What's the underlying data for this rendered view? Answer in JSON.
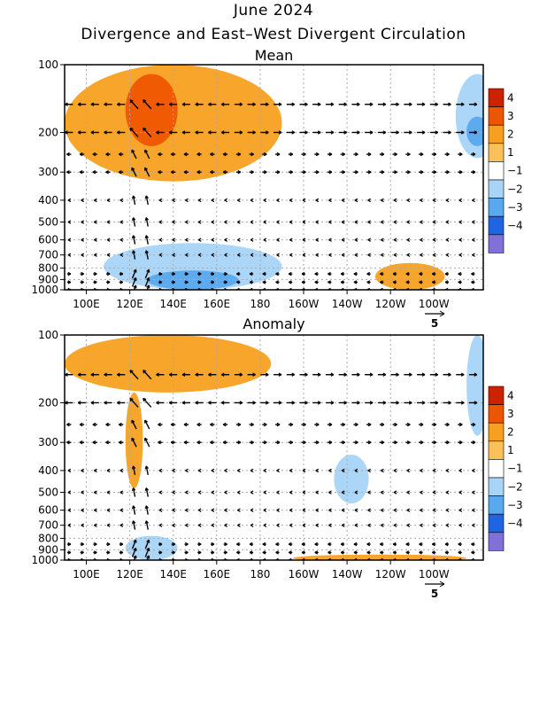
{
  "header": {
    "line1": "June 2024",
    "line2": "Divergence and East–West Divergent Circulation"
  },
  "colors": {
    "pos4": "#cc2200",
    "pos3": "#ee5500",
    "pos2": "#f7a020",
    "pos1": "#fbc05a",
    "neg1": "#a8d4f8",
    "neg2": "#5aa8ee",
    "neg3": "#1f64e0",
    "neg4": "#8070d8",
    "zero": "#ffffff",
    "axis": "#000000",
    "grid": "#aaaaaa"
  },
  "chart_data": [
    {
      "type": "heatmap",
      "title": "Mean",
      "x_ticks": [
        "100E",
        "120E",
        "140E",
        "160E",
        "180",
        "160W",
        "140W",
        "120W",
        "100W"
      ],
      "y_ticks": [
        "100",
        "200",
        "300",
        "400",
        "500",
        "600",
        "700",
        "800",
        "900",
        "1000"
      ],
      "y_scale": "log-pressure",
      "colorbar": {
        "labels": [
          "4",
          "3",
          "2",
          "1",
          "−1",
          "−2",
          "−3",
          "−4"
        ]
      },
      "vector_key": "5",
      "features": [
        {
          "level": 2,
          "lon": [
            90,
            190
          ],
          "p": [
            100,
            330
          ],
          "note": "upper divergence"
        },
        {
          "level": 3,
          "lon": [
            118,
            142
          ],
          "p": [
            110,
            230
          ]
        },
        {
          "level": -1,
          "lon": [
            270,
            290
          ],
          "p": [
            110,
            260
          ]
        },
        {
          "level": -2,
          "lon": [
            275,
            285
          ],
          "p": [
            170,
            230
          ]
        },
        {
          "level": -1,
          "lon": [
            108,
            190
          ],
          "p": [
            620,
            1000
          ],
          "note": "lower convergence"
        },
        {
          "level": -2,
          "lon": [
            128,
            170
          ],
          "p": [
            820,
            1000
          ]
        },
        {
          "level": 2,
          "lon": [
            233,
            265
          ],
          "p": [
            760,
            1000
          ],
          "note": "east Pacific low-level divergence"
        }
      ]
    },
    {
      "type": "heatmap",
      "title": "Anomaly",
      "x_ticks": [
        "100E",
        "120E",
        "140E",
        "160E",
        "180",
        "160W",
        "140W",
        "120W",
        "100W"
      ],
      "y_ticks": [
        "100",
        "200",
        "300",
        "400",
        "500",
        "600",
        "700",
        "800",
        "900",
        "1000"
      ],
      "y_scale": "log-pressure",
      "colorbar": {
        "labels": [
          "4",
          "3",
          "2",
          "1",
          "−1",
          "−2",
          "−3",
          "−4"
        ]
      },
      "vector_key": "5",
      "features": [
        {
          "level": 2,
          "lon": [
            90,
            185
          ],
          "p": [
            100,
            180
          ]
        },
        {
          "level": 2,
          "lon": [
            118,
            126
          ],
          "p": [
            180,
            480
          ]
        },
        {
          "level": -1,
          "lon": [
            275,
            285
          ],
          "p": [
            100,
            280
          ]
        },
        {
          "level": -1,
          "lon": [
            214,
            230
          ],
          "p": [
            340,
            560
          ]
        },
        {
          "level": -1,
          "lon": [
            118,
            142
          ],
          "p": [
            780,
            1000
          ]
        },
        {
          "level": 2,
          "lon": [
            195,
            275
          ],
          "p": [
            960,
            1000
          ]
        }
      ]
    }
  ]
}
